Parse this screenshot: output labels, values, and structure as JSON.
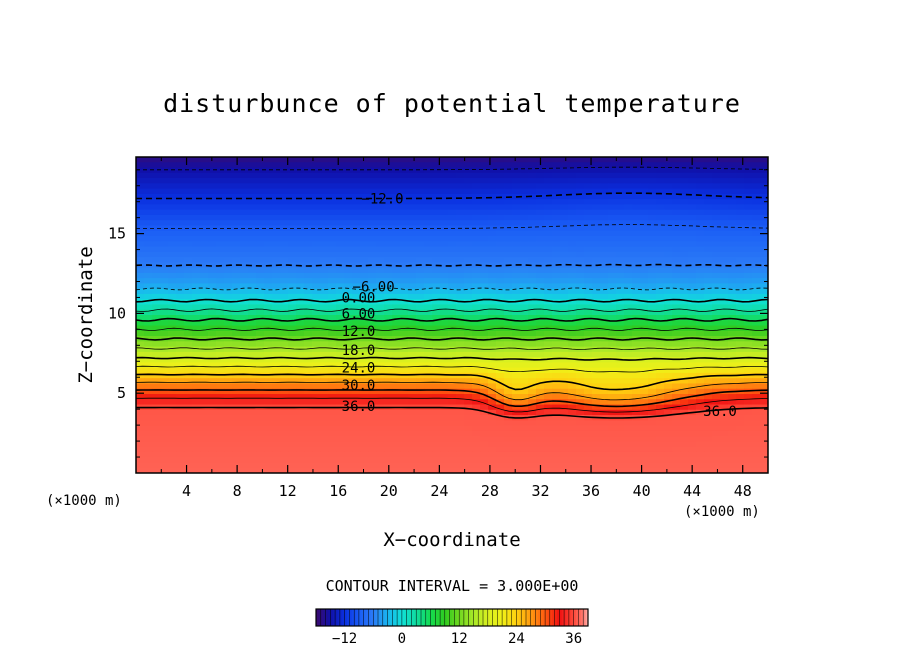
{
  "chart_data": {
    "type": "heatmap",
    "subtype": "filled-contour",
    "title": "disturbunce of potential temperature",
    "xlabel": "X−coordinate",
    "ylabel": "Z−coordinate",
    "x_unit": "(×1000 m)",
    "y_unit": "(×1000 m)",
    "xlim": [
      0,
      50
    ],
    "ylim": [
      0,
      19.8
    ],
    "x_ticks": [
      "4",
      "8",
      "12",
      "16",
      "20",
      "24",
      "28",
      "32",
      "36",
      "40",
      "44",
      "48"
    ],
    "y_ticks": [
      "5",
      "10",
      "15"
    ],
    "contour_interval_text": "CONTOUR INTERVAL = 3.000E+00",
    "contour_interval": 3.0,
    "colorbar": {
      "range": [
        -18,
        39
      ],
      "tick_labels": [
        "−12",
        "0",
        "12",
        "24",
        "36"
      ],
      "tick_values": [
        -12,
        0,
        12,
        24,
        36
      ]
    },
    "colormap_stops": [
      {
        "v": -18,
        "c": "#3c0a6e"
      },
      {
        "v": -15,
        "c": "#1010a8"
      },
      {
        "v": -12,
        "c": "#0a30e0"
      },
      {
        "v": -9,
        "c": "#1a5cf5"
      },
      {
        "v": -6,
        "c": "#2b7bf7"
      },
      {
        "v": -3,
        "c": "#1ab5f0"
      },
      {
        "v": 0,
        "c": "#10e0d8"
      },
      {
        "v": 3,
        "c": "#10dca0"
      },
      {
        "v": 6,
        "c": "#14dc50"
      },
      {
        "v": 9,
        "c": "#30cc20"
      },
      {
        "v": 12,
        "c": "#70d820"
      },
      {
        "v": 15,
        "c": "#a8e828"
      },
      {
        "v": 18,
        "c": "#d8f020"
      },
      {
        "v": 21,
        "c": "#f0f018"
      },
      {
        "v": 24,
        "c": "#ffd010"
      },
      {
        "v": 27,
        "c": "#ff9a10"
      },
      {
        "v": 30,
        "c": "#ff5a10"
      },
      {
        "v": 33,
        "c": "#f01010"
      },
      {
        "v": 36,
        "c": "#ff4a3a"
      },
      {
        "v": 38,
        "c": "#ff7a70"
      },
      {
        "v": 39,
        "c": "#ffb0aa"
      }
    ],
    "contour_labels": [
      {
        "text": "−12.0",
        "x": 19.5,
        "z": 17.2
      },
      {
        "text": "−6.00",
        "x": 18.8,
        "z": 11.7
      },
      {
        "text": "0.00",
        "x": 17.6,
        "z": 11.0
      },
      {
        "text": "6.00",
        "x": 17.6,
        "z": 10.0
      },
      {
        "text": "12.0",
        "x": 17.6,
        "z": 8.9
      },
      {
        "text": "18.0",
        "x": 17.6,
        "z": 7.7
      },
      {
        "text": "24.0",
        "x": 17.6,
        "z": 6.6
      },
      {
        "text": "30.0",
        "x": 17.6,
        "z": 5.5
      },
      {
        "text": "36.0",
        "x": 17.6,
        "z": 4.2
      },
      {
        "text": "36.0",
        "x": 46.2,
        "z": 3.9
      }
    ],
    "field_profile": {
      "description": "theta' vs height (z in km)",
      "z": [
        0,
        4.0,
        4.6,
        5.2,
        6.0,
        7.0,
        8.0,
        9.0,
        10.0,
        11.0,
        11.8,
        13.0,
        15.0,
        17.2,
        19.0,
        19.8
      ],
      "theta": [
        37,
        36.5,
        33.5,
        30,
        25,
        19,
        14,
        9,
        4,
        -1,
        -4,
        -6,
        -8.5,
        -12,
        -15,
        -17
      ]
    }
  }
}
